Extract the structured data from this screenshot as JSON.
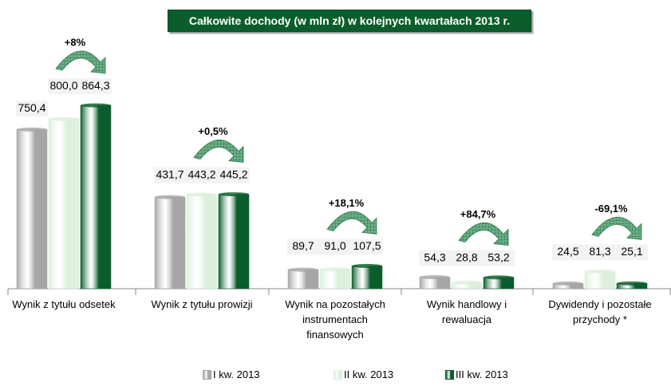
{
  "chart_data": {
    "type": "bar",
    "title": "Całkowite dochody (w mln zł) w kolejnych kwartałach 2013 r.",
    "categories": [
      "Wynik z tytułu odsetek",
      "Wynik z tytułu prowizji",
      "Wynik na pozostałych\ninstrumentach\nfinansowych",
      "Wynik handlowy i\nrewaluacja",
      "Dywidendy i pozostałe\nprzychody *"
    ],
    "series": [
      {
        "name": "I kw. 2013",
        "color": "#a6a6a6",
        "values": [
          750.4,
          431.7,
          89.7,
          54.3,
          24.5
        ],
        "value_labels": [
          "750,4",
          "431,7",
          "89,7",
          "54,3",
          "24,5"
        ]
      },
      {
        "name": "II kw. 2013",
        "color": "#dcf0dc",
        "values": [
          800.0,
          443.2,
          91.0,
          28.8,
          81.3
        ],
        "value_labels": [
          "800,0",
          "443,2",
          "91,0",
          "28,8",
          "81,3"
        ]
      },
      {
        "name": "III kw. 2013",
        "color": "#0b5e2c",
        "values": [
          864.3,
          445.2,
          107.5,
          53.2,
          25.1
        ],
        "value_labels": [
          "864,3",
          "445,2",
          "107,5",
          "53,2",
          "25,1"
        ]
      }
    ],
    "annotations": [
      "+8%",
      "+0,5%",
      "+18,1%",
      "+84,7%",
      "-69,1%"
    ]
  }
}
